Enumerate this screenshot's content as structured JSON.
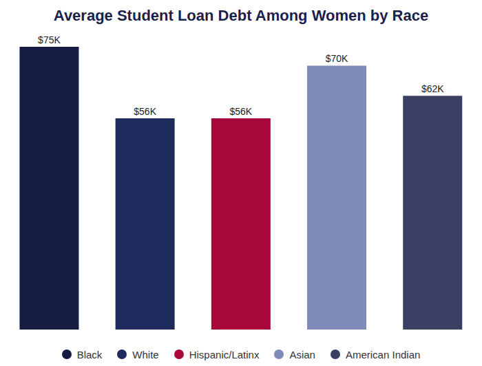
{
  "chart_data": {
    "type": "bar",
    "title": "Average Student Loan Debt Among Women by Race",
    "categories": [
      "Black",
      "White",
      "Hispanic/Latinx",
      "Asian",
      "American Indian"
    ],
    "values": [
      75000,
      56000,
      56000,
      70000,
      62000
    ],
    "value_labels": [
      "$75K",
      "$56K",
      "$56K",
      "$70K",
      "$62K"
    ],
    "colors": [
      "#151c44",
      "#1f2a5c",
      "#a8073a",
      "#7f8bb8",
      "#394063"
    ],
    "data_labels": true,
    "legend": "bottom",
    "tick_labels": false,
    "grid": false
  }
}
